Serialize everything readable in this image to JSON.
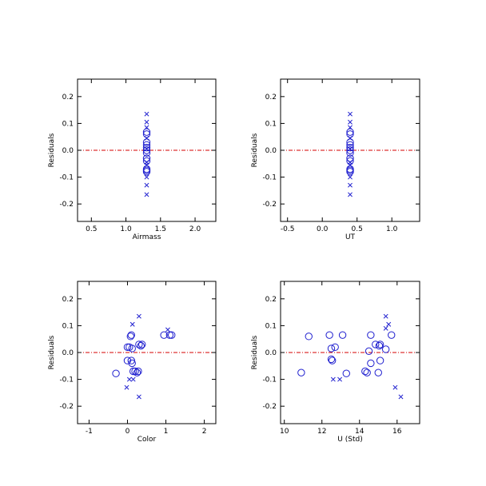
{
  "chart_data": [
    {
      "type": "scatter",
      "xlabel": "Airmass",
      "ylabel": "Residuals",
      "xlim": [
        0.3,
        2.3
      ],
      "ylim": [
        -0.265,
        0.265
      ],
      "xticks": [
        0.5,
        1.0,
        1.5,
        2.0
      ],
      "xtick_labels": [
        "0.5",
        "1.0",
        "1.5",
        "2.0"
      ],
      "yticks": [
        -0.2,
        -0.1,
        0.0,
        0.1,
        0.2
      ],
      "ytick_labels": [
        "-0.2",
        "-0.1",
        "0.0",
        "0.1",
        "0.2"
      ],
      "zero_line": true,
      "series": [
        {
          "marker": "circle",
          "points": [
            [
              1.3,
              0.068
            ],
            [
              1.3,
              0.06
            ],
            [
              1.3,
              0.03
            ],
            [
              1.3,
              0.02
            ],
            [
              1.3,
              0.01
            ],
            [
              1.3,
              0.0
            ],
            [
              1.3,
              -0.01
            ],
            [
              1.3,
              -0.03
            ],
            [
              1.3,
              -0.04
            ],
            [
              1.3,
              -0.07
            ],
            [
              1.3,
              -0.08
            ],
            [
              1.3,
              -0.075
            ]
          ]
        },
        {
          "marker": "x",
          "points": [
            [
              1.3,
              0.135
            ],
            [
              1.3,
              0.105
            ],
            [
              1.3,
              0.085
            ],
            [
              1.3,
              0.045
            ],
            [
              1.3,
              0.005
            ],
            [
              1.3,
              -0.045
            ],
            [
              1.3,
              -0.055
            ],
            [
              1.3,
              -0.1
            ],
            [
              1.3,
              -0.13
            ],
            [
              1.3,
              -0.165
            ]
          ]
        }
      ]
    },
    {
      "type": "scatter",
      "xlabel": "UT",
      "ylabel": "Residuals",
      "xlim": [
        -0.6,
        1.4
      ],
      "ylim": [
        -0.265,
        0.265
      ],
      "xticks": [
        -0.5,
        0.0,
        0.5,
        1.0
      ],
      "xtick_labels": [
        "-0.5",
        "0.0",
        "0.5",
        "1.0"
      ],
      "yticks": [
        -0.2,
        -0.1,
        0.0,
        0.1,
        0.2
      ],
      "ytick_labels": [
        "-0.2",
        "-0.1",
        "0.0",
        "0.1",
        "0.2"
      ],
      "zero_line": true,
      "series": [
        {
          "marker": "circle",
          "points": [
            [
              0.4,
              0.068
            ],
            [
              0.4,
              0.06
            ],
            [
              0.4,
              0.03
            ],
            [
              0.4,
              0.02
            ],
            [
              0.4,
              0.01
            ],
            [
              0.4,
              0.0
            ],
            [
              0.4,
              -0.01
            ],
            [
              0.4,
              -0.03
            ],
            [
              0.4,
              -0.04
            ],
            [
              0.4,
              -0.07
            ],
            [
              0.4,
              -0.08
            ],
            [
              0.4,
              -0.075
            ]
          ]
        },
        {
          "marker": "x",
          "points": [
            [
              0.4,
              0.135
            ],
            [
              0.4,
              0.105
            ],
            [
              0.4,
              0.085
            ],
            [
              0.4,
              0.045
            ],
            [
              0.4,
              0.005
            ],
            [
              0.4,
              -0.045
            ],
            [
              0.4,
              -0.055
            ],
            [
              0.4,
              -0.1
            ],
            [
              0.4,
              -0.13
            ],
            [
              0.4,
              -0.165
            ]
          ]
        }
      ]
    },
    {
      "type": "scatter",
      "xlabel": "Color",
      "ylabel": "Residuals",
      "xlim": [
        -1.3,
        2.3
      ],
      "ylim": [
        -0.265,
        0.265
      ],
      "xticks": [
        -1,
        0,
        1,
        2
      ],
      "xtick_labels": [
        "-1",
        "0",
        "1",
        "2"
      ],
      "yticks": [
        -0.2,
        -0.1,
        0.0,
        0.1,
        0.2
      ],
      "ytick_labels": [
        "-0.2",
        "-0.1",
        "0.0",
        "0.1",
        "0.2"
      ],
      "zero_line": true,
      "series": [
        {
          "marker": "circle",
          "points": [
            [
              -0.3,
              -0.078
            ],
            [
              0.0,
              0.02
            ],
            [
              0.0,
              -0.03
            ],
            [
              0.05,
              0.02
            ],
            [
              0.08,
              0.06
            ],
            [
              0.1,
              0.065
            ],
            [
              0.1,
              -0.03
            ],
            [
              0.12,
              0.015
            ],
            [
              0.12,
              -0.04
            ],
            [
              0.15,
              -0.07
            ],
            [
              0.2,
              -0.07
            ],
            [
              0.25,
              -0.075
            ],
            [
              0.28,
              -0.07
            ],
            [
              0.3,
              0.03
            ],
            [
              0.35,
              0.025
            ],
            [
              0.38,
              0.03
            ],
            [
              0.95,
              0.065
            ],
            [
              1.1,
              0.065
            ],
            [
              1.15,
              0.065
            ]
          ]
        },
        {
          "marker": "x",
          "points": [
            [
              -0.02,
              -0.13
            ],
            [
              0.05,
              -0.1
            ],
            [
              0.13,
              0.105
            ],
            [
              0.15,
              -0.1
            ],
            [
              0.3,
              0.135
            ],
            [
              0.3,
              -0.165
            ],
            [
              1.05,
              0.085
            ]
          ]
        }
      ]
    },
    {
      "type": "scatter",
      "xlabel": "U (Std)",
      "ylabel": "Residuals",
      "xlim": [
        9.8,
        17.2
      ],
      "ylim": [
        -0.265,
        0.265
      ],
      "xticks": [
        10,
        12,
        14,
        16
      ],
      "xtick_labels": [
        "10",
        "12",
        "14",
        "16"
      ],
      "yticks": [
        -0.2,
        -0.1,
        0.0,
        0.1,
        0.2
      ],
      "ytick_labels": [
        "-0.2",
        "-0.1",
        "0.0",
        "0.1",
        "0.2"
      ],
      "zero_line": true,
      "series": [
        {
          "marker": "circle",
          "points": [
            [
              10.9,
              -0.075
            ],
            [
              11.3,
              0.06
            ],
            [
              12.4,
              0.065
            ],
            [
              12.5,
              0.015
            ],
            [
              12.5,
              -0.025
            ],
            [
              12.55,
              -0.03
            ],
            [
              12.7,
              0.02
            ],
            [
              13.1,
              0.065
            ],
            [
              13.3,
              -0.078
            ],
            [
              14.3,
              -0.07
            ],
            [
              14.4,
              -0.075
            ],
            [
              14.5,
              0.005
            ],
            [
              14.6,
              0.065
            ],
            [
              14.6,
              -0.04
            ],
            [
              14.85,
              0.03
            ],
            [
              15.0,
              -0.075
            ],
            [
              15.05,
              0.025
            ],
            [
              15.1,
              0.03
            ],
            [
              15.1,
              -0.03
            ],
            [
              15.4,
              0.012
            ],
            [
              15.7,
              0.065
            ]
          ]
        },
        {
          "marker": "x",
          "points": [
            [
              12.6,
              -0.1
            ],
            [
              12.95,
              -0.1
            ],
            [
              15.4,
              0.135
            ],
            [
              15.4,
              0.09
            ],
            [
              15.55,
              0.105
            ],
            [
              15.9,
              -0.13
            ],
            [
              16.2,
              -0.165
            ]
          ]
        }
      ]
    }
  ],
  "colors": {
    "axis": "#000000",
    "marker": "#1f1fcf",
    "zero_line": "#d40000"
  }
}
